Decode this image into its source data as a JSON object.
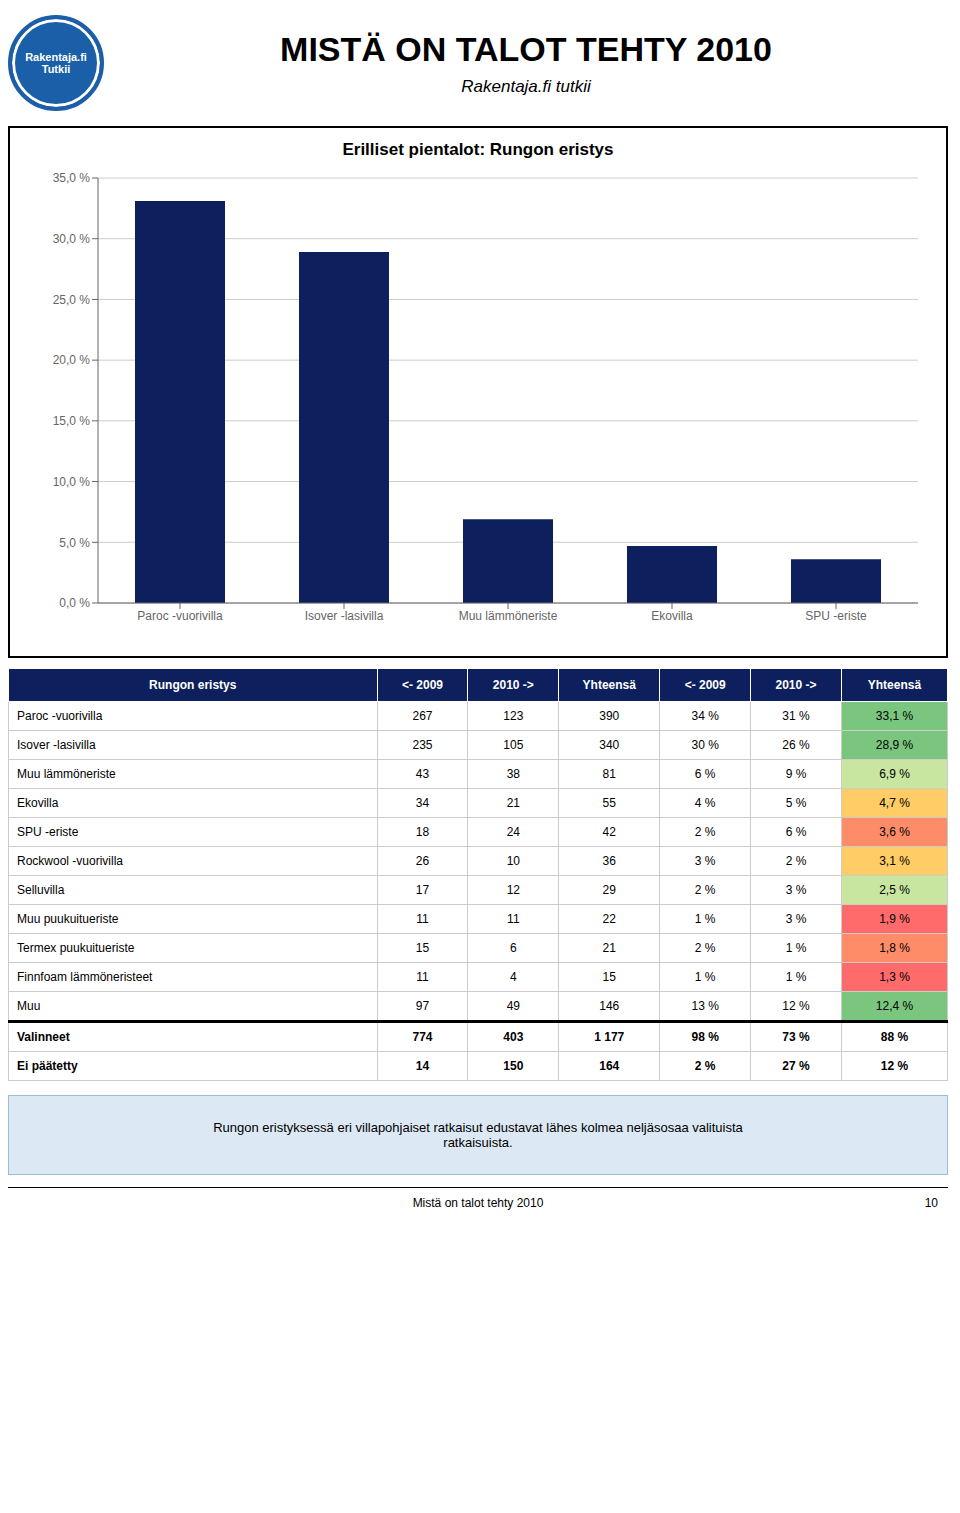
{
  "title": "MISTÄ ON TALOT TEHTY 2010",
  "subtitle": "Rakentaja.fi tutkii",
  "chart_data": {
    "type": "bar",
    "title": "Erilliset pientalot: Rungon eristys",
    "categories": [
      "Paroc -vuorivilla",
      "Isover -lasivilla",
      "Muu lämmöneriste",
      "Ekovilla",
      "SPU -eriste"
    ],
    "values": [
      33.1,
      28.9,
      6.9,
      4.7,
      3.6
    ],
    "color": "#0d1f5c",
    "ylim": [
      0,
      35
    ],
    "yticks": [
      {
        "value": 0,
        "label": "0,0 %"
      },
      {
        "value": 5,
        "label": "5,0 %"
      },
      {
        "value": 10,
        "label": "10,0 %"
      },
      {
        "value": 15,
        "label": "15,0 %"
      },
      {
        "value": 20,
        "label": "20,0 %"
      },
      {
        "value": 25,
        "label": "25,0 %"
      },
      {
        "value": 30,
        "label": "30,0 %"
      },
      {
        "value": 35,
        "label": "35,0 %"
      }
    ],
    "grid": true
  },
  "table": {
    "header": [
      "Rungon eristys",
      "<- 2009",
      "2010 ->",
      "Yhteensä",
      "<- 2009",
      "2010 ->",
      "Yhteensä"
    ],
    "rows": [
      [
        "Paroc -vuorivilla",
        "267",
        "123",
        "390",
        "34 %",
        "31 %",
        "33,1 %"
      ],
      [
        "Isover -lasivilla",
        "235",
        "105",
        "340",
        "30 %",
        "26 %",
        "28,9 %"
      ],
      [
        "Muu lämmöneriste",
        "43",
        "38",
        "81",
        "6 %",
        "9 %",
        "6,9 %"
      ],
      [
        "Ekovilla",
        "34",
        "21",
        "55",
        "4 %",
        "5 %",
        "4,7 %"
      ],
      [
        "SPU -eriste",
        "18",
        "24",
        "42",
        "2 %",
        "6 %",
        "3,6 %"
      ],
      [
        "Rockwool -vuorivilla",
        "26",
        "10",
        "36",
        "3 %",
        "2 %",
        "3,1 %"
      ],
      [
        "Selluvilla",
        "17",
        "12",
        "29",
        "2 %",
        "3 %",
        "2,5 %"
      ],
      [
        "Muu puukuitueriste",
        "11",
        "11",
        "22",
        "1 %",
        "3 %",
        "1,9 %"
      ],
      [
        "Termex puukuitueriste",
        "15",
        "6",
        "21",
        "2 %",
        "1 %",
        "1,8 %"
      ],
      [
        "Finnfoam lämmöneristeet",
        "11",
        "4",
        "15",
        "1 %",
        "1 %",
        "1,3 %"
      ],
      [
        "Muu",
        "97",
        "49",
        "146",
        "13 %",
        "12 %",
        "12,4 %"
      ],
      [
        "Valinneet",
        "774",
        "403",
        "1 177",
        "98 %",
        "73 %",
        "88 %"
      ],
      [
        "Ei päätetty",
        "14",
        "150",
        "164",
        "2 %",
        "27 %",
        "12 %"
      ]
    ],
    "colors": [
      "#7bc67e",
      "#7bc67e",
      "#c8e6a0",
      "#ffcc66",
      "#ff8c69",
      "#ffcc66",
      "#c8e6a0",
      "#ff6b6b",
      "#ff8c69",
      "#ff6b6b",
      "#7bc67e",
      null,
      null
    ],
    "header_color": "#0d1f5c"
  },
  "annotations": {
    "logo": [
      "Rakentaja.fi",
      "Tutkii"
    ],
    "note": "Rungon eristyksessä eri villapohjaiset ratkaisut edustavat lähes kolmea neljäsosaa valituista\nratkaisuista.",
    "footer": "Mistä on talot tehty 2010",
    "page": "10"
  }
}
